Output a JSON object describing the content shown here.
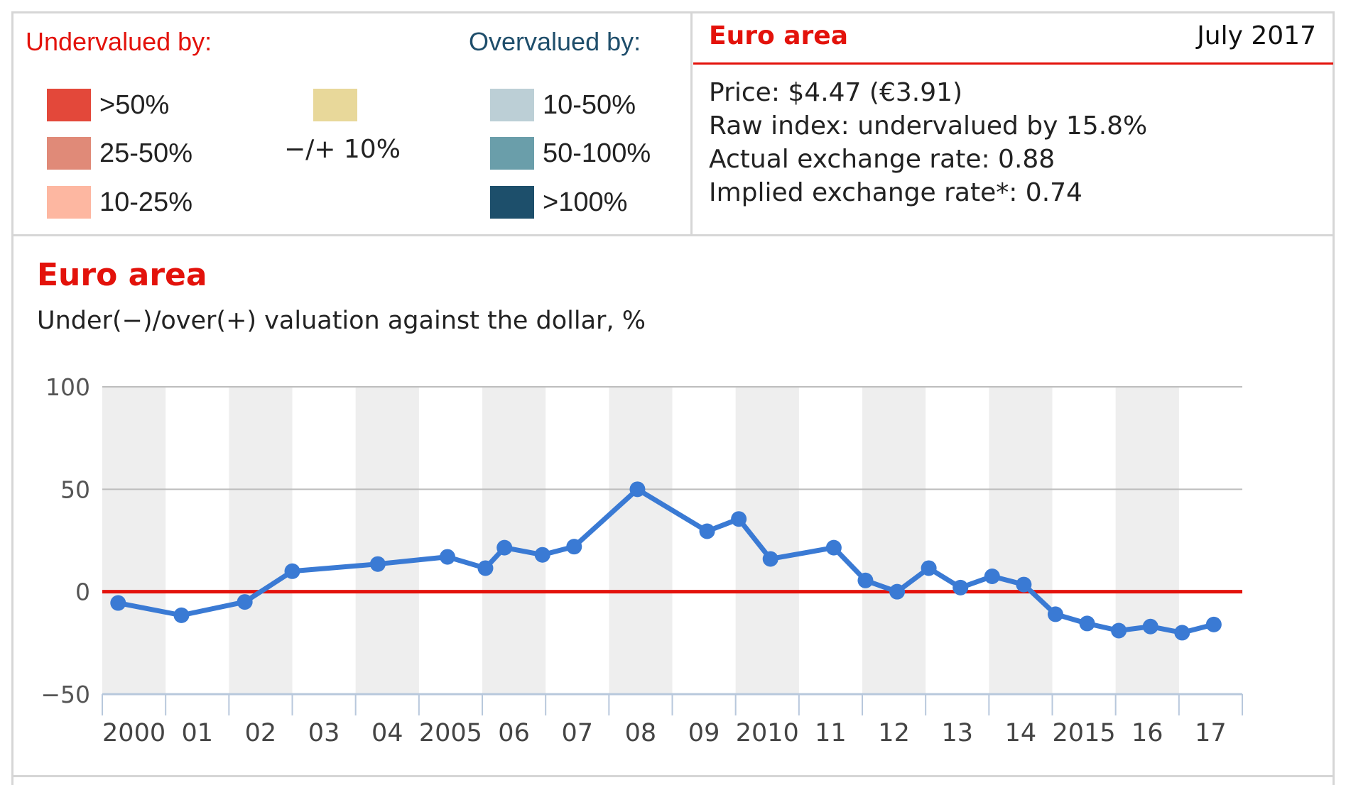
{
  "legend": {
    "undervalued_label": "Undervalued by:",
    "overvalued_label": "Overvalued by:",
    "under_items": [
      {
        "label": ">50%",
        "color": "#e3483a"
      },
      {
        "label": "25-50%",
        "color": "#e08a78"
      },
      {
        "label": "10-25%",
        "color": "#fdb7a1"
      }
    ],
    "neutral_item": {
      "label": "−/+ 10%",
      "color": "#e8d89a"
    },
    "over_items": [
      {
        "label": "10-50%",
        "color": "#bccfd6"
      },
      {
        "label": "50-100%",
        "color": "#6a9eaa"
      },
      {
        "label": ">100%",
        "color": "#1d4f6b"
      }
    ]
  },
  "info": {
    "title": "Euro area",
    "date": "July 2017",
    "lines": [
      "Price: $4.47 (€3.91)",
      "Raw index: undervalued by 15.8%",
      "Actual exchange rate: 0.88",
      "Implied exchange rate*: 0.74"
    ]
  },
  "chart_data": {
    "type": "line",
    "title": "Euro area",
    "subtitle": "Under(−)/over(+) valuation against the dollar, %",
    "ylim": [
      -50,
      100
    ],
    "yticks": [
      100,
      50,
      0,
      -50
    ],
    "ytick_labels": [
      "100",
      "50",
      "0",
      "−50"
    ],
    "xlim": [
      2000,
      2018
    ],
    "xticks": [
      2000,
      2001,
      2002,
      2003,
      2004,
      2005,
      2006,
      2007,
      2008,
      2009,
      2010,
      2011,
      2012,
      2013,
      2014,
      2015,
      2016,
      2017
    ],
    "xtick_labels": [
      "2000",
      "01",
      "02",
      "03",
      "04",
      "2005",
      "06",
      "07",
      "08",
      "09",
      "2010",
      "11",
      "12",
      "13",
      "14",
      "2015",
      "16",
      "17"
    ],
    "zero_line": true,
    "line_color": "#3a7ad4",
    "zero_color": "#e3120b",
    "series": [
      {
        "x": [
          2000.25,
          2001.25,
          2002.25,
          2003.0,
          2004.35,
          2005.45,
          2006.05,
          2006.35,
          2006.95,
          2007.45,
          2008.45,
          2009.55,
          2010.05,
          2010.55,
          2011.55,
          2012.05,
          2012.55,
          2013.05,
          2013.55,
          2014.05,
          2014.55,
          2015.05,
          2015.55,
          2016.05,
          2016.55,
          2017.05,
          2017.55
        ],
        "values": [
          -5.5,
          -11.5,
          -5,
          10,
          13.5,
          17,
          11.5,
          21.5,
          18,
          22,
          50,
          29.5,
          35.5,
          16,
          21.5,
          5.5,
          0,
          11.5,
          2,
          7.5,
          3.5,
          -11,
          -15.5,
          -19,
          -17,
          -20,
          -16
        ]
      }
    ]
  }
}
